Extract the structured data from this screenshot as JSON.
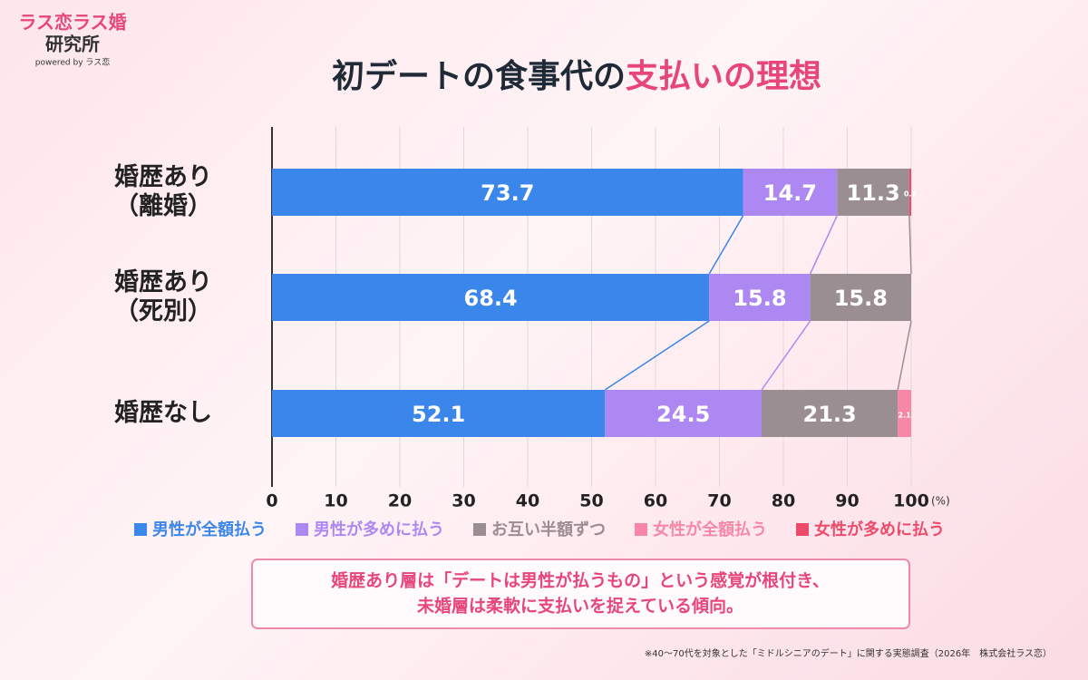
{
  "logo": {
    "line1": "ラス恋ラス婚",
    "line2": "研究所",
    "line3": "powered by ラス恋"
  },
  "chart_data": {
    "type": "stacked-bar-horizontal",
    "title": "初デートの食事代の",
    "title_highlight": "支払いの理想",
    "categories": [
      "婚歴あり\n（離婚）",
      "婚歴あり\n（死別）",
      "婚歴なし"
    ],
    "series": [
      {
        "name": "男性が全額払う",
        "color": "#3b86ea",
        "values": [
          73.7,
          68.4,
          52.1
        ]
      },
      {
        "name": "男性が多めに払う",
        "color": "#ad88f2",
        "values": [
          14.7,
          15.8,
          24.5
        ]
      },
      {
        "name": "お互い半額ずつ",
        "color": "#9a8e93",
        "values": [
          11.3,
          15.8,
          21.3
        ]
      },
      {
        "name": "女性が全額払う",
        "color": "#f787a6",
        "values": [
          0,
          0,
          2.1
        ]
      },
      {
        "name": "女性が多めに払う",
        "color": "#ee4a6a",
        "values": [
          0.3,
          0,
          0
        ]
      }
    ],
    "xlim": [
      0,
      100
    ],
    "xticks": [
      0,
      10,
      20,
      30,
      40,
      50,
      60,
      70,
      80,
      90,
      100
    ],
    "x_unit": "(%)",
    "grid": true
  },
  "note": {
    "lines": [
      "婚歴あり層は「デートは男性が払うもの」という感覚が根付き、",
      "未婚層は柔軟に支払いを捉えている傾向。"
    ]
  },
  "footnote": "※40〜70代を対象とした「ミドルシニアのデート」に関する実態調査（2026年　株式会社ラス恋）"
}
